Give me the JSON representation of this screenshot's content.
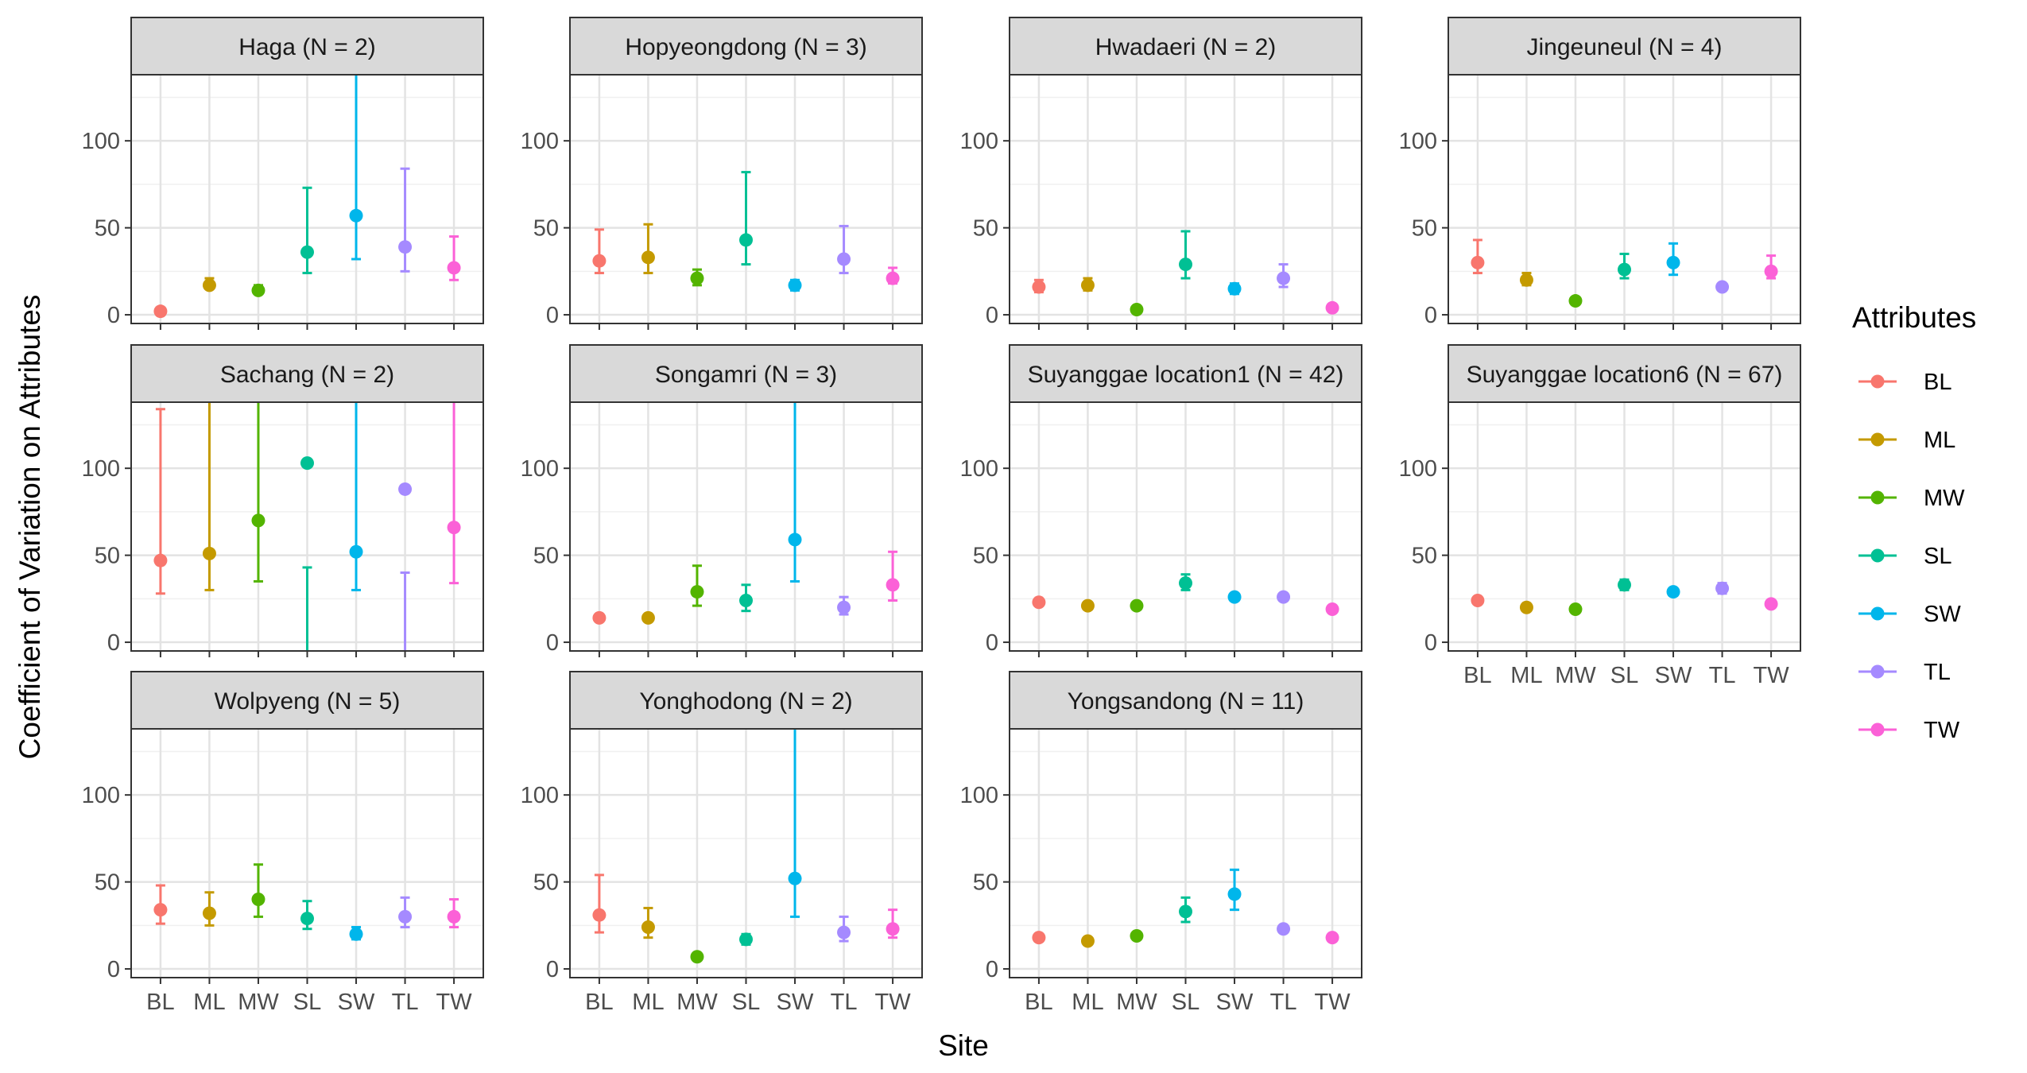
{
  "chart_data": {
    "type": "scatter",
    "subtype": "point-with-errorbars, faceted",
    "xlabel": "Site",
    "ylabel": "Coefficient of Variation on Attributes",
    "ylim": [
      -5,
      138
    ],
    "y_ticks": [
      0,
      50,
      100
    ],
    "categories": [
      "BL",
      "ML",
      "MW",
      "SL",
      "SW",
      "TL",
      "TW"
    ],
    "grid": "on",
    "legend": {
      "title": "Attributes",
      "position": "right",
      "entries": [
        "BL",
        "ML",
        "MW",
        "SL",
        "SW",
        "TL",
        "TW"
      ]
    },
    "colors": {
      "BL": "#F8766D",
      "ML": "#C49A00",
      "MW": "#53B400",
      "SL": "#00C094",
      "SW": "#00B6EB",
      "TL": "#A58AFF",
      "TW": "#FB61D7"
    },
    "panels": [
      {
        "title": "Haga (N = 2)",
        "points": [
          {
            "x": "BL",
            "y": 2,
            "lo": 2,
            "hi": 2
          },
          {
            "x": "ML",
            "y": 17,
            "lo": 15,
            "hi": 21
          },
          {
            "x": "MW",
            "y": 14,
            "lo": 12,
            "hi": 17
          },
          {
            "x": "SL",
            "y": 36,
            "lo": 24,
            "hi": 73
          },
          {
            "x": "SW",
            "y": 57,
            "lo": 32,
            "hi": 140
          },
          {
            "x": "TL",
            "y": 39,
            "lo": 25,
            "hi": 84
          },
          {
            "x": "TW",
            "y": 27,
            "lo": 20,
            "hi": 45
          }
        ]
      },
      {
        "title": "Hopyeongdong (N = 3)",
        "points": [
          {
            "x": "BL",
            "y": 31,
            "lo": 24,
            "hi": 49
          },
          {
            "x": "ML",
            "y": 33,
            "lo": 24,
            "hi": 52
          },
          {
            "x": "MW",
            "y": 21,
            "lo": 17,
            "hi": 26
          },
          {
            "x": "SL",
            "y": 43,
            "lo": 29,
            "hi": 82
          },
          {
            "x": "SW",
            "y": 17,
            "lo": 14,
            "hi": 20
          },
          {
            "x": "TL",
            "y": 32,
            "lo": 24,
            "hi": 51
          },
          {
            "x": "TW",
            "y": 21,
            "lo": 18,
            "hi": 27
          }
        ]
      },
      {
        "title": "Hwadaeri (N = 2)",
        "points": [
          {
            "x": "BL",
            "y": 16,
            "lo": 13,
            "hi": 20
          },
          {
            "x": "ML",
            "y": 17,
            "lo": 14,
            "hi": 21
          },
          {
            "x": "MW",
            "y": 3,
            "lo": 3,
            "hi": 3
          },
          {
            "x": "SL",
            "y": 29,
            "lo": 21,
            "hi": 48
          },
          {
            "x": "SW",
            "y": 15,
            "lo": 12,
            "hi": 18
          },
          {
            "x": "TL",
            "y": 21,
            "lo": 16,
            "hi": 29
          },
          {
            "x": "TW",
            "y": 4,
            "lo": 4,
            "hi": 4
          }
        ]
      },
      {
        "title": "Jingeuneul (N = 4)",
        "points": [
          {
            "x": "BL",
            "y": 30,
            "lo": 24,
            "hi": 43
          },
          {
            "x": "ML",
            "y": 20,
            "lo": 17,
            "hi": 24
          },
          {
            "x": "MW",
            "y": 8,
            "lo": 8,
            "hi": 8
          },
          {
            "x": "SL",
            "y": 26,
            "lo": 21,
            "hi": 35
          },
          {
            "x": "SW",
            "y": 30,
            "lo": 23,
            "hi": 41
          },
          {
            "x": "TL",
            "y": 16,
            "lo": 16,
            "hi": 16
          },
          {
            "x": "TW",
            "y": 25,
            "lo": 21,
            "hi": 34
          }
        ]
      },
      {
        "title": "Sachang (N = 2)",
        "points": [
          {
            "x": "BL",
            "y": 47,
            "lo": 28,
            "hi": 134
          },
          {
            "x": "ML",
            "y": 51,
            "lo": 30,
            "hi": 140
          },
          {
            "x": "MW",
            "y": 70,
            "lo": 35,
            "hi": 140
          },
          {
            "x": "SL",
            "y": 103,
            "lo": -8,
            "hi": 43
          },
          {
            "x": "SW",
            "y": 52,
            "lo": 30,
            "hi": 140
          },
          {
            "x": "TL",
            "y": 88,
            "lo": -8,
            "hi": 40
          },
          {
            "x": "TW",
            "y": 66,
            "lo": 34,
            "hi": 140
          }
        ]
      },
      {
        "title": "Songamri (N = 3)",
        "points": [
          {
            "x": "BL",
            "y": 14,
            "lo": 14,
            "hi": 14
          },
          {
            "x": "ML",
            "y": 14,
            "lo": 14,
            "hi": 14
          },
          {
            "x": "MW",
            "y": 29,
            "lo": 21,
            "hi": 44
          },
          {
            "x": "SL",
            "y": 24,
            "lo": 18,
            "hi": 33
          },
          {
            "x": "SW",
            "y": 59,
            "lo": 35,
            "hi": 140
          },
          {
            "x": "TL",
            "y": 20,
            "lo": 16,
            "hi": 26
          },
          {
            "x": "TW",
            "y": 33,
            "lo": 24,
            "hi": 52
          }
        ]
      },
      {
        "title": "Suyanggae location1 (N = 42)",
        "points": [
          {
            "x": "BL",
            "y": 23,
            "lo": 21,
            "hi": 25
          },
          {
            "x": "ML",
            "y": 21,
            "lo": 19,
            "hi": 23
          },
          {
            "x": "MW",
            "y": 21,
            "lo": 19,
            "hi": 23
          },
          {
            "x": "SL",
            "y": 34,
            "lo": 30,
            "hi": 39
          },
          {
            "x": "SW",
            "y": 26,
            "lo": 24,
            "hi": 28
          },
          {
            "x": "TL",
            "y": 26,
            "lo": 24,
            "hi": 28
          },
          {
            "x": "TW",
            "y": 19,
            "lo": 17,
            "hi": 21
          }
        ]
      },
      {
        "title": "Suyanggae location6 (N = 67)",
        "points": [
          {
            "x": "BL",
            "y": 24,
            "lo": 22,
            "hi": 26
          },
          {
            "x": "ML",
            "y": 20,
            "lo": 18,
            "hi": 22
          },
          {
            "x": "MW",
            "y": 19,
            "lo": 17,
            "hi": 21
          },
          {
            "x": "SL",
            "y": 33,
            "lo": 30,
            "hi": 36
          },
          {
            "x": "SW",
            "y": 29,
            "lo": 27,
            "hi": 31
          },
          {
            "x": "TL",
            "y": 31,
            "lo": 28,
            "hi": 34
          },
          {
            "x": "TW",
            "y": 22,
            "lo": 20,
            "hi": 24
          }
        ]
      },
      {
        "title": "Wolpyeng (N = 5)",
        "points": [
          {
            "x": "BL",
            "y": 34,
            "lo": 26,
            "hi": 48
          },
          {
            "x": "ML",
            "y": 32,
            "lo": 25,
            "hi": 44
          },
          {
            "x": "MW",
            "y": 40,
            "lo": 30,
            "hi": 60
          },
          {
            "x": "SL",
            "y": 29,
            "lo": 23,
            "hi": 39
          },
          {
            "x": "SW",
            "y": 20,
            "lo": 17,
            "hi": 24
          },
          {
            "x": "TL",
            "y": 30,
            "lo": 24,
            "hi": 41
          },
          {
            "x": "TW",
            "y": 30,
            "lo": 24,
            "hi": 40
          }
        ]
      },
      {
        "title": "Yonghodong (N = 2)",
        "points": [
          {
            "x": "BL",
            "y": 31,
            "lo": 21,
            "hi": 54
          },
          {
            "x": "ML",
            "y": 24,
            "lo": 18,
            "hi": 35
          },
          {
            "x": "MW",
            "y": 7,
            "lo": 7,
            "hi": 7
          },
          {
            "x": "SL",
            "y": 17,
            "lo": 14,
            "hi": 20
          },
          {
            "x": "SW",
            "y": 52,
            "lo": 30,
            "hi": 140
          },
          {
            "x": "TL",
            "y": 21,
            "lo": 16,
            "hi": 30
          },
          {
            "x": "TW",
            "y": 23,
            "lo": 18,
            "hi": 34
          }
        ]
      },
      {
        "title": "Yongsandong (N = 11)",
        "points": [
          {
            "x": "BL",
            "y": 18,
            "lo": 16,
            "hi": 20
          },
          {
            "x": "ML",
            "y": 16,
            "lo": 14,
            "hi": 18
          },
          {
            "x": "MW",
            "y": 19,
            "lo": 17,
            "hi": 21
          },
          {
            "x": "SL",
            "y": 33,
            "lo": 27,
            "hi": 41
          },
          {
            "x": "SW",
            "y": 43,
            "lo": 34,
            "hi": 57
          },
          {
            "x": "TL",
            "y": 23,
            "lo": 21,
            "hi": 25
          },
          {
            "x": "TW",
            "y": 18,
            "lo": 16,
            "hi": 20
          }
        ]
      }
    ]
  }
}
